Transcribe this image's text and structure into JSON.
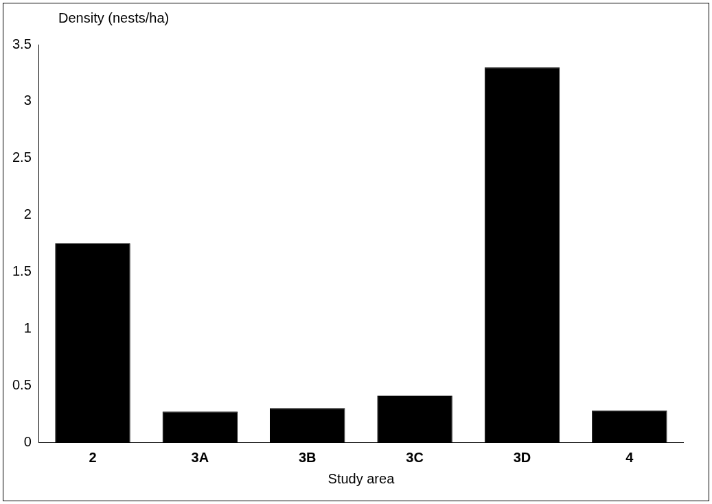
{
  "chart_data": {
    "type": "bar",
    "ylabel": "Density (nests/ha)",
    "xlabel": "Study area",
    "categories": [
      "2",
      "3A",
      "3B",
      "3C",
      "3D",
      "4"
    ],
    "values": [
      1.75,
      0.27,
      0.3,
      0.41,
      3.3,
      0.28
    ],
    "color": "#000000",
    "ylim": [
      0,
      3.5
    ],
    "yticks": [
      0,
      0.5,
      1,
      1.5,
      2,
      2.5,
      3,
      3.5
    ],
    "grid": false,
    "legend": false
  }
}
